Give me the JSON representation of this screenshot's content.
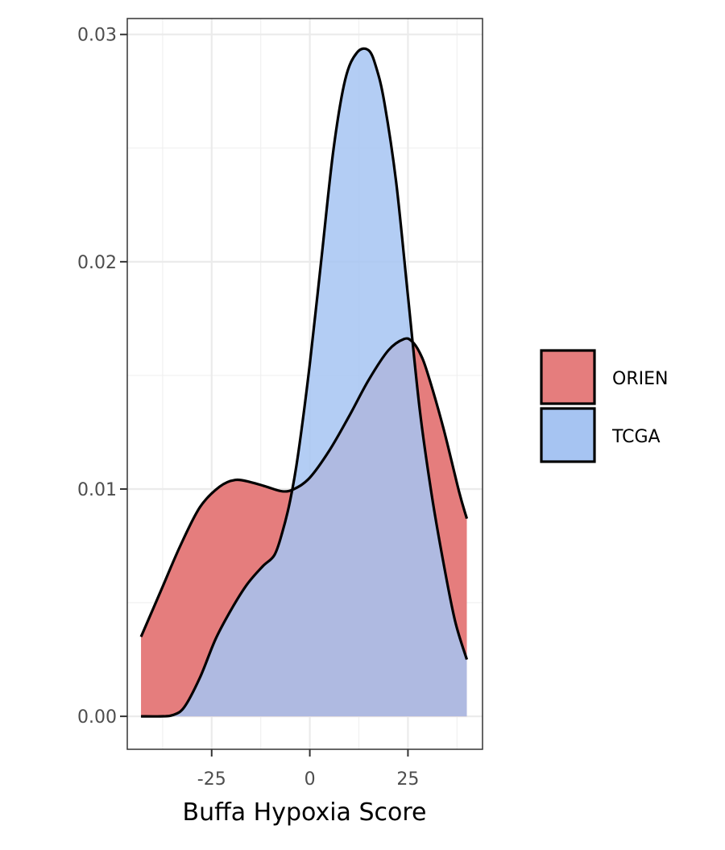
{
  "chart_data": {
    "type": "area",
    "xlabel": "Buffa Hypoxia Score",
    "ylabel": "",
    "xlim": [
      -46.5,
      44
    ],
    "ylim": [
      -0.00145,
      0.0307
    ],
    "x_ticks": [
      -25,
      0,
      25
    ],
    "x_tick_labels": [
      "-25",
      "0",
      "25"
    ],
    "y_ticks": [
      0,
      0.01,
      0.02,
      0.03
    ],
    "y_tick_labels": [
      "0.00",
      "0.01",
      "0.02",
      "0.03"
    ],
    "grid": true,
    "legend_position": "right",
    "series": [
      {
        "name": "ORIEN",
        "color": "#e57d7d",
        "x": [
          -43,
          -38,
          -33,
          -28,
          -23,
          -19,
          -15,
          -11,
          -7,
          -4,
          0,
          5,
          10,
          15,
          20,
          24,
          26,
          28,
          30,
          34,
          38,
          40
        ],
        "y": [
          0.0035,
          0.0055,
          0.0075,
          0.0092,
          0.0101,
          0.0104,
          0.0103,
          0.0101,
          0.0099,
          0.01,
          0.0105,
          0.0117,
          0.0132,
          0.0148,
          0.0161,
          0.0166,
          0.0165,
          0.016,
          0.0151,
          0.0127,
          0.0099,
          0.0087
        ]
      },
      {
        "name": "TCGA",
        "color": "#a6c4f2",
        "x": [
          -43,
          -38,
          -35,
          -32,
          -28,
          -24,
          -20,
          -16,
          -12,
          -9,
          -7,
          -5,
          -3,
          0,
          3,
          6,
          9,
          12,
          15,
          17,
          19,
          22,
          25,
          28,
          31,
          34,
          37,
          40
        ],
        "y": [
          0,
          0,
          5e-05,
          0.0004,
          0.0017,
          0.0034,
          0.0047,
          0.0058,
          0.0066,
          0.0071,
          0.0081,
          0.0095,
          0.0115,
          0.0155,
          0.0202,
          0.0249,
          0.028,
          0.0292,
          0.0293,
          0.0285,
          0.027,
          0.0235,
          0.0185,
          0.0135,
          0.0098,
          0.0068,
          0.0042,
          0.0025
        ]
      }
    ],
    "legend": [
      "ORIEN",
      "TCGA"
    ]
  }
}
